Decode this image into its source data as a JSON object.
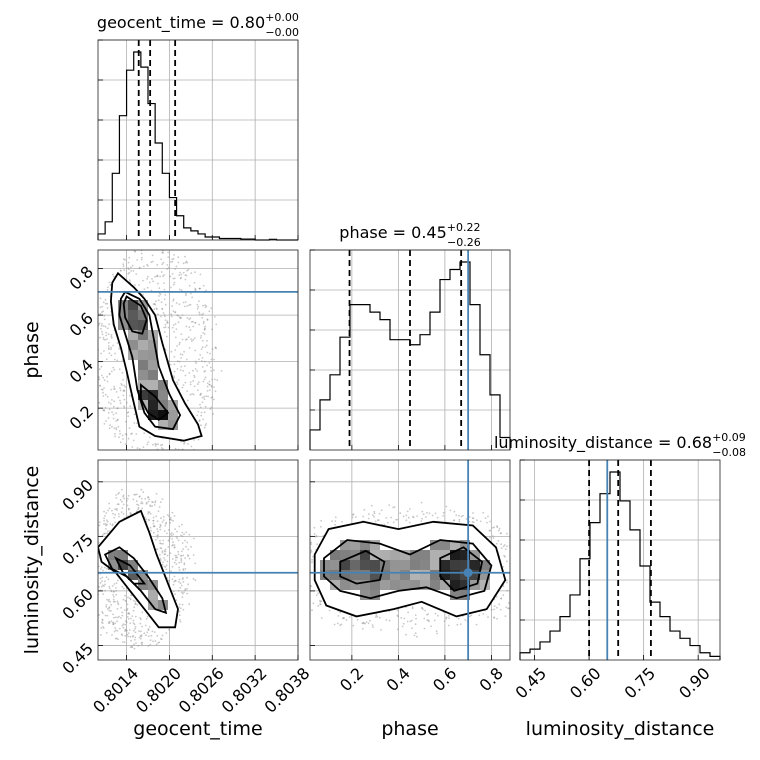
{
  "colors": {
    "truth": "#4682b4",
    "line": "#000000",
    "grid": "#b0b0b0",
    "scatter": "#888888"
  },
  "parameters": [
    {
      "name": "geocent_time",
      "label": "geocent_time",
      "range": [
        0.801,
        0.8038
      ],
      "truth": null,
      "ticks": [
        0.8014,
        0.802,
        0.8026,
        0.8032,
        0.8038
      ],
      "tick_labels": [
        "0.8014",
        "0.8020",
        "0.8026",
        "0.8032",
        "0.8038"
      ],
      "median": 0.8,
      "plus": "+0.00",
      "minus": "−0.00",
      "title_prefix": "geocent_time = 0.80",
      "quantiles": [
        0.80157,
        0.80173,
        0.80208
      ]
    },
    {
      "name": "phase",
      "label": "phase",
      "range": [
        0.02,
        0.88
      ],
      "truth": 0.7,
      "ticks": [
        0.2,
        0.4,
        0.6,
        0.8
      ],
      "tick_labels": [
        "0.2",
        "0.4",
        "0.6",
        "0.8"
      ],
      "median": 0.45,
      "plus": "+0.22",
      "minus": "−0.26",
      "title_prefix": "phase = 0.45",
      "quantiles": [
        0.19,
        0.45,
        0.67
      ]
    },
    {
      "name": "luminosity_distance",
      "label": "luminosity_distance",
      "range": [
        0.41,
        0.96
      ],
      "truth": 0.65,
      "ticks": [
        0.45,
        0.6,
        0.75,
        0.9
      ],
      "tick_labels": [
        "0.45",
        "0.60",
        "0.75",
        "0.90"
      ],
      "median": 0.68,
      "plus": "+0.09",
      "minus": "−0.08",
      "title_prefix": "luminosity_distance = 0.68",
      "quantiles": [
        0.6,
        0.68,
        0.77
      ]
    }
  ],
  "chart_data": {
    "type": "corner",
    "grid": true,
    "histograms": [
      {
        "parameter": "geocent_time",
        "bin_edges": [
          0.801,
          0.8011,
          0.8012,
          0.8013,
          0.8014,
          0.8015,
          0.8016,
          0.8017,
          0.8018,
          0.8019,
          0.802,
          0.8021,
          0.8022,
          0.8023,
          0.8024,
          0.8025,
          0.8026,
          0.8027,
          0.8028,
          0.8029,
          0.803,
          0.8031,
          0.8032,
          0.8033,
          0.8034,
          0.8035,
          0.8036,
          0.8037,
          0.8038
        ],
        "counts": [
          2,
          6,
          22,
          41,
          56,
          62,
          57,
          45,
          32,
          22,
          14,
          8,
          4,
          3,
          2,
          1,
          1,
          0.5,
          0.5,
          0.5,
          0.3,
          0.3,
          0,
          0,
          0.2,
          0,
          0,
          0
        ]
      },
      {
        "parameter": "phase",
        "bin_edges": [
          0.02,
          0.063,
          0.106,
          0.149,
          0.192,
          0.235,
          0.278,
          0.321,
          0.364,
          0.407,
          0.45,
          0.493,
          0.536,
          0.579,
          0.622,
          0.665,
          0.708,
          0.751,
          0.794,
          0.837,
          0.88
        ],
        "counts": [
          8,
          20,
          30,
          45,
          58,
          58,
          55,
          52,
          44,
          44,
          42,
          46,
          55,
          68,
          72,
          75,
          58,
          38,
          22,
          5
        ]
      },
      {
        "parameter": "luminosity_distance",
        "bin_edges": [
          0.41,
          0.4375,
          0.465,
          0.4925,
          0.52,
          0.5475,
          0.575,
          0.6025,
          0.63,
          0.6575,
          0.685,
          0.7125,
          0.74,
          0.7675,
          0.795,
          0.8225,
          0.85,
          0.8775,
          0.905,
          0.9325,
          0.96
        ],
        "counts": [
          2,
          3,
          5,
          8,
          12,
          18,
          28,
          38,
          46,
          52,
          44,
          36,
          26,
          16,
          12,
          8,
          6,
          4,
          2,
          1
        ]
      }
    ],
    "density_2d": [
      {
        "x": "geocent_time",
        "y": "phase",
        "levels": [
          [
            [
              0.80128,
              0.78
            ],
            [
              0.8015,
              0.72
            ],
            [
              0.80165,
              0.67
            ],
            [
              0.8018,
              0.6
            ],
            [
              0.8019,
              0.48
            ],
            [
              0.80205,
              0.32
            ],
            [
              0.80222,
              0.22
            ],
            [
              0.8024,
              0.13
            ],
            [
              0.80245,
              0.08
            ],
            [
              0.8022,
              0.06
            ],
            [
              0.8018,
              0.08
            ],
            [
              0.80158,
              0.12
            ],
            [
              0.80148,
              0.25
            ],
            [
              0.8014,
              0.36
            ],
            [
              0.80132,
              0.46
            ],
            [
              0.80122,
              0.56
            ],
            [
              0.80118,
              0.66
            ],
            [
              0.8012,
              0.74
            ]
          ],
          [
            [
              0.80138,
              0.7
            ],
            [
              0.80158,
              0.67
            ],
            [
              0.80172,
              0.6
            ],
            [
              0.80178,
              0.5
            ],
            [
              0.80185,
              0.38
            ],
            [
              0.802,
              0.26
            ],
            [
              0.80215,
              0.17
            ],
            [
              0.80205,
              0.11
            ],
            [
              0.8018,
              0.12
            ],
            [
              0.80165,
              0.18
            ],
            [
              0.80155,
              0.28
            ],
            [
              0.80148,
              0.42
            ],
            [
              0.80138,
              0.52
            ],
            [
              0.8013,
              0.6
            ],
            [
              0.80132,
              0.67
            ]
          ],
          [
            [
              0.8014,
              0.68
            ],
            [
              0.8016,
              0.64
            ],
            [
              0.80168,
              0.58
            ],
            [
              0.80162,
              0.52
            ],
            [
              0.80148,
              0.53
            ],
            [
              0.80138,
              0.59
            ],
            [
              0.80136,
              0.65
            ]
          ],
          [
            [
              0.8016,
              0.3
            ],
            [
              0.8018,
              0.25
            ],
            [
              0.80198,
              0.18
            ],
            [
              0.80185,
              0.15
            ],
            [
              0.8017,
              0.18
            ],
            [
              0.8016,
              0.24
            ]
          ]
        ]
      },
      {
        "x": "geocent_time",
        "y": "luminosity_distance",
        "levels": [
          [
            [
              0.801,
              0.72
            ],
            [
              0.8013,
              0.79
            ],
            [
              0.8016,
              0.82
            ],
            [
              0.80172,
              0.76
            ],
            [
              0.80182,
              0.7
            ],
            [
              0.80198,
              0.62
            ],
            [
              0.80212,
              0.55
            ],
            [
              0.80208,
              0.5
            ],
            [
              0.80185,
              0.5
            ],
            [
              0.80165,
              0.55
            ],
            [
              0.80145,
              0.6
            ],
            [
              0.80125,
              0.65
            ],
            [
              0.80105,
              0.68
            ]
          ],
          [
            [
              0.8011,
              0.7
            ],
            [
              0.8013,
              0.72
            ],
            [
              0.8015,
              0.69
            ],
            [
              0.8017,
              0.64
            ],
            [
              0.8019,
              0.58
            ],
            [
              0.80195,
              0.54
            ],
            [
              0.8018,
              0.55
            ],
            [
              0.8016,
              0.6
            ],
            [
              0.8014,
              0.64
            ],
            [
              0.8012,
              0.66
            ]
          ],
          [
            [
              0.80125,
              0.69
            ],
            [
              0.80145,
              0.67
            ],
            [
              0.80165,
              0.62
            ],
            [
              0.8015,
              0.62
            ],
            [
              0.80135,
              0.65
            ]
          ]
        ]
      },
      {
        "x": "phase",
        "y": "luminosity_distance",
        "levels": [
          [
            [
              0.04,
              0.7
            ],
            [
              0.1,
              0.77
            ],
            [
              0.25,
              0.79
            ],
            [
              0.4,
              0.77
            ],
            [
              0.55,
              0.79
            ],
            [
              0.72,
              0.78
            ],
            [
              0.82,
              0.72
            ],
            [
              0.86,
              0.63
            ],
            [
              0.78,
              0.55
            ],
            [
              0.65,
              0.53
            ],
            [
              0.5,
              0.57
            ],
            [
              0.38,
              0.55
            ],
            [
              0.22,
              0.53
            ],
            [
              0.09,
              0.56
            ],
            [
              0.04,
              0.63
            ]
          ],
          [
            [
              0.08,
              0.69
            ],
            [
              0.18,
              0.74
            ],
            [
              0.32,
              0.73
            ],
            [
              0.45,
              0.7
            ],
            [
              0.58,
              0.74
            ],
            [
              0.72,
              0.73
            ],
            [
              0.8,
              0.67
            ],
            [
              0.77,
              0.6
            ],
            [
              0.65,
              0.58
            ],
            [
              0.52,
              0.61
            ],
            [
              0.4,
              0.6
            ],
            [
              0.28,
              0.58
            ],
            [
              0.15,
              0.6
            ],
            [
              0.08,
              0.64
            ]
          ],
          [
            [
              0.15,
              0.68
            ],
            [
              0.26,
              0.71
            ],
            [
              0.34,
              0.68
            ],
            [
              0.32,
              0.63
            ],
            [
              0.22,
              0.62
            ],
            [
              0.15,
              0.64
            ]
          ],
          [
            [
              0.58,
              0.69
            ],
            [
              0.68,
              0.72
            ],
            [
              0.76,
              0.68
            ],
            [
              0.74,
              0.62
            ],
            [
              0.64,
              0.6
            ],
            [
              0.58,
              0.64
            ]
          ]
        ]
      }
    ]
  }
}
